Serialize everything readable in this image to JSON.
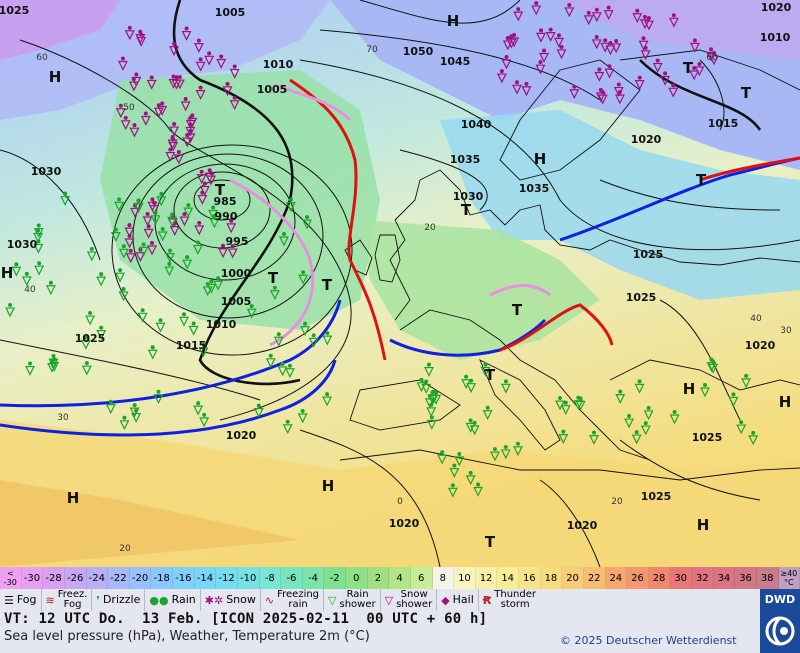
{
  "pressure_labels": [
    {
      "id": "p1005a",
      "text": "1005"
    },
    {
      "id": "p1005b",
      "text": "1005"
    },
    {
      "id": "p1010a",
      "text": "1010"
    },
    {
      "id": "p1010b",
      "text": "1010"
    },
    {
      "id": "p1050",
      "text": "1050"
    },
    {
      "id": "p1045",
      "text": "1045"
    },
    {
      "id": "p1040",
      "text": "1040"
    },
    {
      "id": "p1035a",
      "text": "1035"
    },
    {
      "id": "p1035b",
      "text": "1035"
    },
    {
      "id": "p1030a",
      "text": "1030"
    },
    {
      "id": "p1030b",
      "text": "1030"
    },
    {
      "id": "p1030c",
      "text": "1030"
    },
    {
      "id": "p985",
      "text": "985"
    },
    {
      "id": "p990",
      "text": "990"
    },
    {
      "id": "p995",
      "text": "995"
    },
    {
      "id": "p1000",
      "text": "1000"
    },
    {
      "id": "p1005c",
      "text": "1005"
    },
    {
      "id": "p1010c",
      "text": "1010"
    },
    {
      "id": "p1015a",
      "text": "1015"
    },
    {
      "id": "p1025a",
      "text": "1025"
    },
    {
      "id": "p1020a",
      "text": "1020"
    },
    {
      "id": "p1015b",
      "text": "1015"
    },
    {
      "id": "p1025b",
      "text": "1025"
    },
    {
      "id": "p1025c",
      "text": "1025"
    },
    {
      "id": "p1020b",
      "text": "1020"
    },
    {
      "id": "p1020c",
      "text": "1020"
    },
    {
      "id": "p1025d",
      "text": "1025"
    },
    {
      "id": "p1025e",
      "text": "1025"
    },
    {
      "id": "p1020d",
      "text": "1020"
    },
    {
      "id": "p1020e",
      "text": "1020"
    },
    {
      "id": "p1025f",
      "text": "1025"
    },
    {
      "id": "p1020f",
      "text": "1020"
    }
  ],
  "high_low_labels": [
    "H",
    "H",
    "H",
    "H",
    "H",
    "H",
    "H",
    "H",
    "H",
    "T",
    "T",
    "T",
    "T",
    "T",
    "T",
    "T",
    "T",
    "T",
    "T"
  ],
  "isotherm_labels": [
    "60",
    "50",
    "40",
    "30",
    "20",
    "70",
    "60",
    "40",
    "30",
    "20",
    "0",
    "20"
  ],
  "temperature_scale": {
    "low_end": "<\n-30",
    "values": [
      "-30",
      "-28",
      "-26",
      "-24",
      "-22",
      "-20",
      "-18",
      "-16",
      "-14",
      "-12",
      "-10",
      "-8",
      "-6",
      "-4",
      "-2",
      "0",
      "2",
      "4",
      "6",
      "8",
      "10",
      "12",
      "14",
      "16",
      "18",
      "20",
      "22",
      "24",
      "26",
      "28",
      "30",
      "32",
      "34",
      "36",
      "38"
    ],
    "high_end": "≥40\n°C",
    "colors": [
      "#f0a0f0",
      "#e8a0f0",
      "#d8a0f0",
      "#c8a8f0",
      "#b8b0f4",
      "#a8b8f8",
      "#98c0fa",
      "#88c8fc",
      "#80d0fc",
      "#7ad6f8",
      "#78dcf0",
      "#78e0e4",
      "#78e4d4",
      "#78e4c0",
      "#7ce4a8",
      "#80e090",
      "#90e088",
      "#a0e080",
      "#b4e488",
      "#c8ec98",
      "#f4f4e8",
      "#f8f4c0",
      "#f8f0a8",
      "#f8ec98",
      "#f8e488",
      "#f8dc80",
      "#f8cc78",
      "#f8bc74",
      "#f4a870",
      "#f49870",
      "#f08870",
      "#e87878",
      "#e07480",
      "#d87484",
      "#d07888",
      "#c87c8c",
      "#c0a0c0"
    ]
  },
  "legend": {
    "fog": "Fog",
    "freez_fog": "Freez.\nFog",
    "drizzle": "Drizzle",
    "rain": "Rain",
    "snow": "Snow",
    "freezing_rain": "Freezing\nrain",
    "rain_shower": "Rain\nshower",
    "snow_shower": "Snow\nshower",
    "hail": "Hail",
    "thunderstorm": "Thunder\nstorm"
  },
  "legend_icons": {
    "fog": "fog-icon",
    "freez_fog": "freezing-fog-icon",
    "drizzle": "drizzle-icon",
    "rain": "rain-icon",
    "snow": "snow-icon",
    "freezing_rain": "freezing-rain-icon",
    "rain_shower": "rain-shower-icon",
    "snow_shower": "snow-shower-icon",
    "hail": "hail-icon",
    "thunderstorm": "thunderstorm-icon"
  },
  "info": {
    "valid_time": "VT: 12 UTC Do.  13 Feb. [ICON 2025-02-11  00 UTC + 60 h]",
    "subtitle": "Sea level pressure (hPa), Weather, Temperature 2m (°C)",
    "copyright": "© 2025 Deutscher Wetterdienst",
    "logo_text": "DWD"
  },
  "colors": {
    "cold_front": "#1020e0",
    "warm_front": "#e01010",
    "occlusion": "#e890e0",
    "rain_symbol": "#1aa52a",
    "snow_symbol": "#a01080"
  }
}
